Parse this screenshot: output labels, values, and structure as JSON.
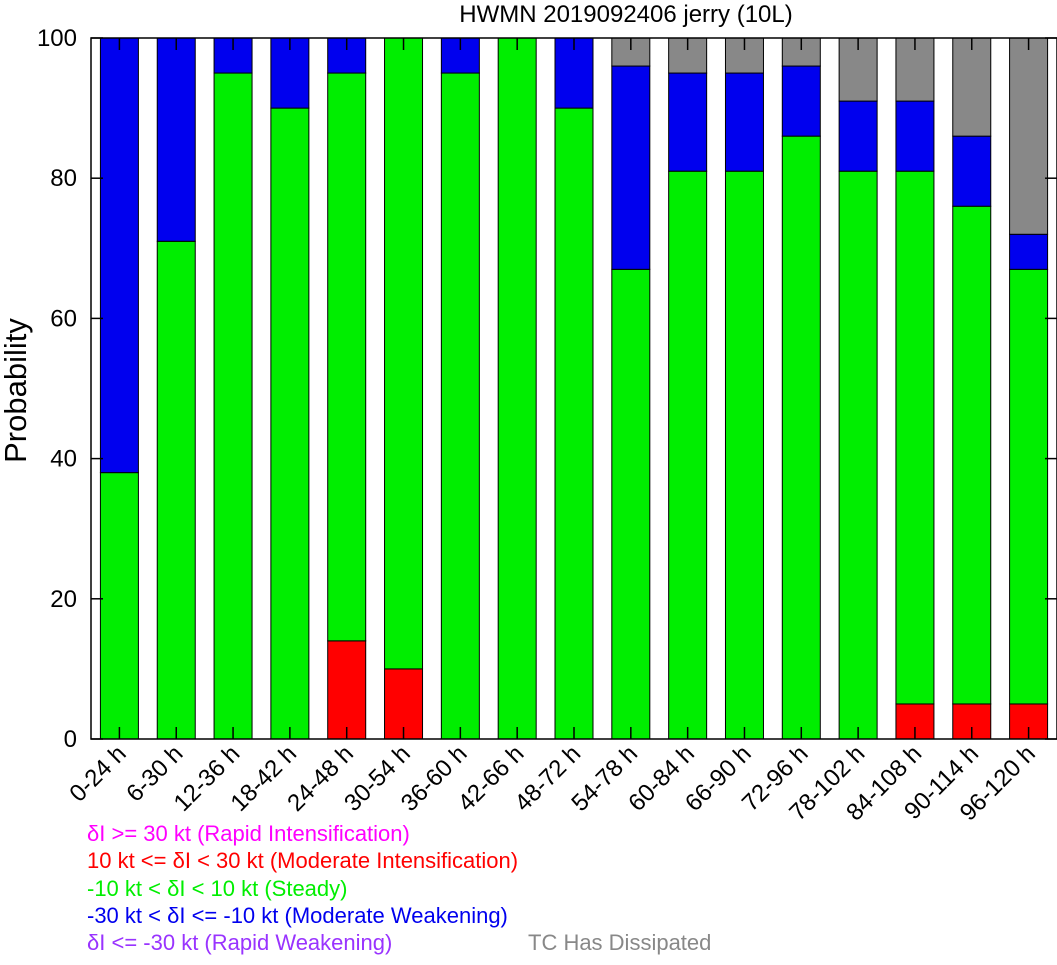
{
  "chart_data": {
    "type": "bar",
    "stacked": true,
    "title": "HWMN 2019092406 jerry (10L)",
    "ylabel": "Probability",
    "xlabel": "",
    "ylim": [
      0,
      100
    ],
    "yticks": [
      "0",
      "20",
      "40",
      "60",
      "80",
      "100"
    ],
    "grid": false,
    "categories": [
      "0-24 h",
      "6-30 h",
      "12-36 h",
      "18-42 h",
      "24-48 h",
      "30-54 h",
      "36-60 h",
      "42-66 h",
      "48-72 h",
      "54-78 h",
      "60-84 h",
      "66-90 h",
      "72-96 h",
      "78-102 h",
      "84-108 h",
      "90-114 h",
      "96-120 h"
    ],
    "series": [
      {
        "key": "rapid_intensification",
        "color": "#ff00ff",
        "values": [
          0,
          0,
          0,
          0,
          0,
          0,
          0,
          0,
          0,
          0,
          0,
          0,
          0,
          0,
          0,
          0,
          0
        ]
      },
      {
        "key": "moderate_intensification",
        "color": "#ff0000",
        "values": [
          0,
          0,
          0,
          0,
          14,
          10,
          0,
          0,
          0,
          0,
          0,
          0,
          0,
          0,
          5,
          5,
          5
        ]
      },
      {
        "key": "steady",
        "color": "#00ee00",
        "values": [
          38,
          71,
          95,
          90,
          81,
          90,
          95,
          100,
          90,
          67,
          81,
          81,
          86,
          81,
          76,
          71,
          62
        ]
      },
      {
        "key": "moderate_weakening",
        "color": "#0000ee",
        "values": [
          62,
          29,
          5,
          10,
          5,
          0,
          5,
          0,
          10,
          29,
          14,
          14,
          10,
          10,
          10,
          10,
          5
        ]
      },
      {
        "key": "rapid_weakening",
        "color": "#9933ff",
        "values": [
          0,
          0,
          0,
          0,
          0,
          0,
          0,
          0,
          0,
          0,
          0,
          0,
          0,
          0,
          0,
          0,
          0
        ]
      },
      {
        "key": "dissipated",
        "color": "#888888",
        "values": [
          0,
          0,
          0,
          0,
          0,
          0,
          0,
          0,
          0,
          4,
          5,
          5,
          4,
          9,
          9,
          14,
          28
        ]
      }
    ],
    "legend": [
      {
        "text": "δI >= 30 kt (Rapid Intensification)",
        "color": "#ff00ff"
      },
      {
        "text": "10 kt <= δI < 30 kt (Moderate Intensification)",
        "color": "#ff0000"
      },
      {
        "text": "-10 kt < δI < 10 kt (Steady)",
        "color": "#00ee00"
      },
      {
        "text": "-30 kt < δI <= -10 kt (Moderate Weakening)",
        "color": "#0000ee"
      },
      {
        "text": "δI <= -30 kt (Rapid Weakening)",
        "color": "#9933ff"
      }
    ],
    "legend_extra": {
      "text": "TC Has Dissipated",
      "color": "#888888"
    }
  }
}
